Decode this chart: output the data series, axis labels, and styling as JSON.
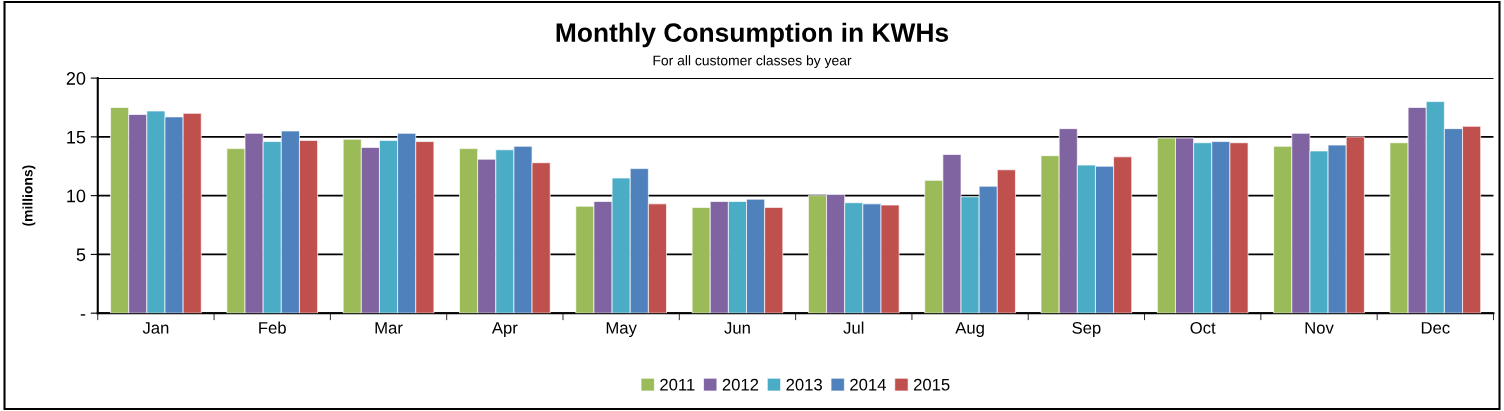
{
  "chart_data": {
    "type": "bar",
    "title": "Monthly Consumption in KWHs",
    "subtitle": "For all customer classes by year",
    "ylabel": "(millions)",
    "categories": [
      "Jan",
      "Feb",
      "Mar",
      "Apr",
      "May",
      "Jun",
      "Jul",
      "Aug",
      "Sep",
      "Oct",
      "Nov",
      "Dec"
    ],
    "series": [
      {
        "name": "2011",
        "color": "#9bbb59",
        "values": [
          17.5,
          14.0,
          14.8,
          14.0,
          9.1,
          9.0,
          10.0,
          11.3,
          13.4,
          14.9,
          14.2,
          14.5
        ]
      },
      {
        "name": "2012",
        "color": "#8064a2",
        "values": [
          16.9,
          15.3,
          14.1,
          13.1,
          9.5,
          9.5,
          10.1,
          13.5,
          15.7,
          14.9,
          15.3,
          17.5
        ]
      },
      {
        "name": "2013",
        "color": "#4bacc6",
        "values": [
          17.2,
          14.6,
          14.7,
          13.9,
          11.5,
          9.5,
          9.4,
          9.9,
          12.6,
          14.5,
          13.8,
          18.0
        ]
      },
      {
        "name": "2014",
        "color": "#4f81bd",
        "values": [
          16.7,
          15.5,
          15.3,
          14.2,
          12.3,
          9.7,
          9.3,
          10.8,
          12.5,
          14.6,
          14.3,
          15.7
        ]
      },
      {
        "name": "2015",
        "color": "#c0504d",
        "values": [
          17.0,
          14.7,
          14.6,
          12.8,
          9.3,
          9.0,
          9.2,
          12.2,
          13.3,
          14.5,
          15.0,
          15.9
        ]
      }
    ],
    "ylim": [
      0,
      20
    ],
    "yticks": [
      {
        "value": 0,
        "label": "-"
      },
      5,
      10,
      15,
      20
    ],
    "grid": "y",
    "legend": "bottom"
  }
}
